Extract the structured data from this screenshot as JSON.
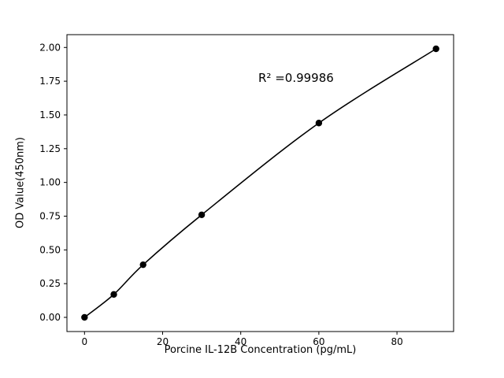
{
  "chart_data": {
    "type": "scatter",
    "x": [
      0,
      7.5,
      15,
      30,
      60,
      90
    ],
    "y": [
      0.0,
      0.17,
      0.39,
      0.76,
      1.44,
      1.99
    ],
    "title": "",
    "xlabel": "Porcine IL-12B Concentration (pg/mL)",
    "ylabel": "OD Value(450nm)",
    "annotation": "R² =0.99986",
    "xlim": [
      -4.5,
      94.5
    ],
    "ylim": [
      -0.105,
      2.095
    ],
    "xticks": [
      0,
      20,
      40,
      60,
      80
    ],
    "yticks": [
      0.0,
      0.25,
      0.5,
      0.75,
      1.0,
      1.25,
      1.5,
      1.75,
      2.0
    ],
    "grid": false,
    "legend": "none",
    "line_color": "#000000",
    "marker_color": "#000000",
    "background_color": "#ffffff"
  }
}
